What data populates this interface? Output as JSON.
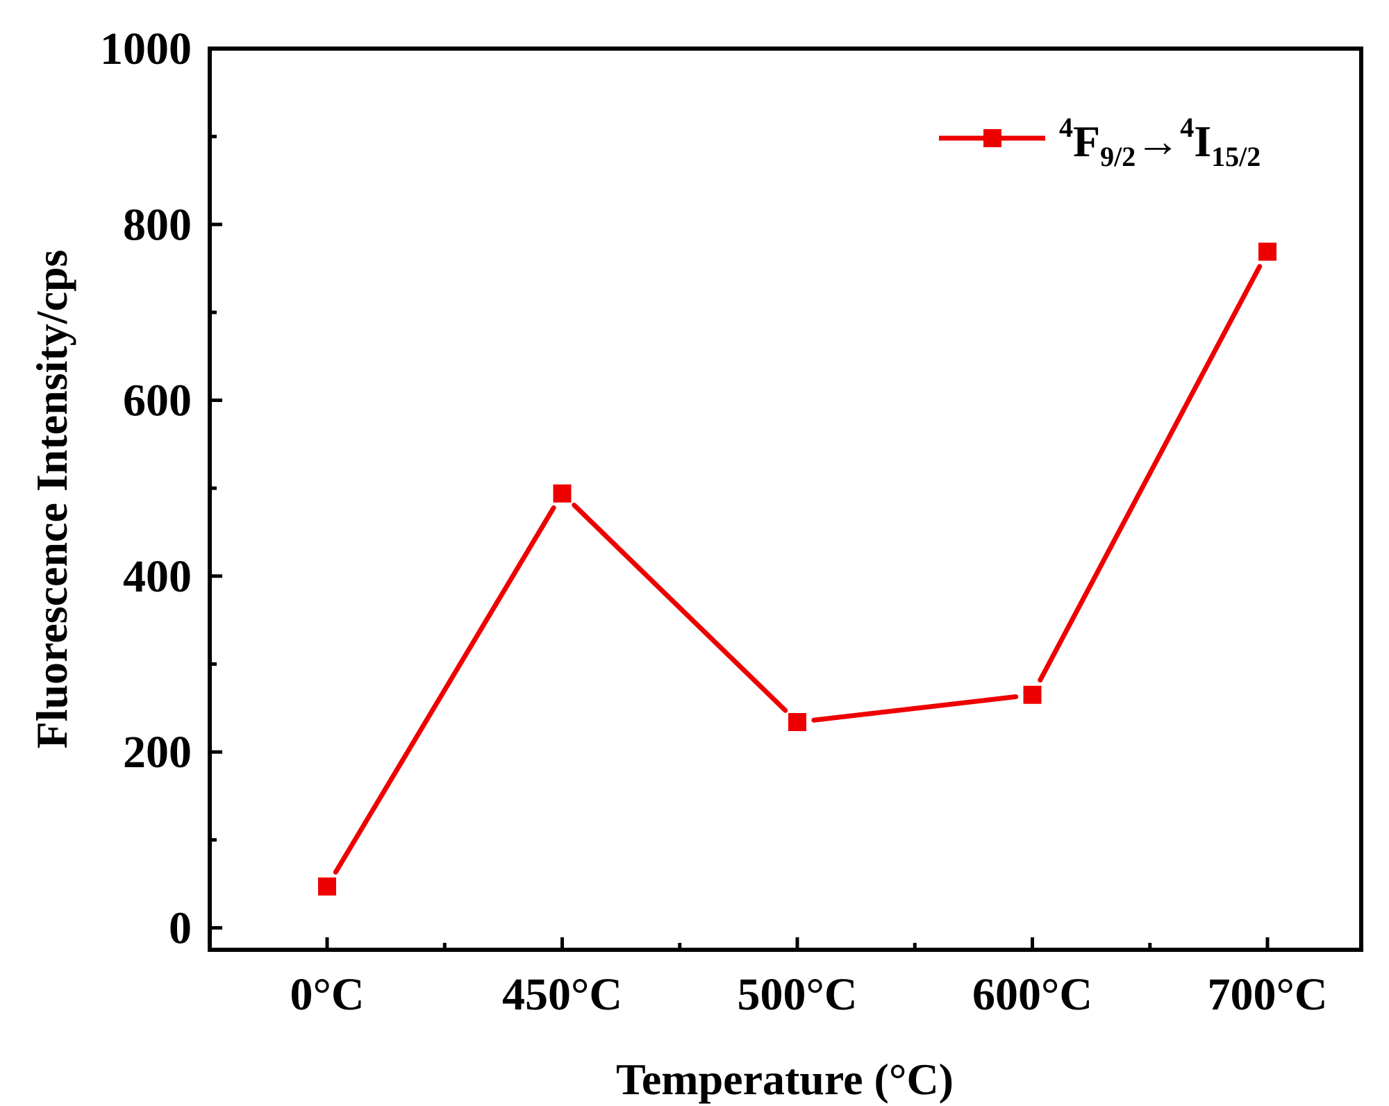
{
  "chart_data": {
    "type": "line",
    "xlabel": "Temperature (°C)",
    "ylabel": "Fluorescence Intensity/cps",
    "categories": [
      "0°C",
      "450°C",
      "500°C",
      "600°C",
      "700°C"
    ],
    "ylim": [
      -25,
      1000
    ],
    "yticks": [
      0,
      200,
      400,
      600,
      800,
      1000
    ],
    "yticks_minor": [
      100,
      300,
      500,
      700,
      900
    ],
    "legend_position": "top-right",
    "grid": false,
    "series": [
      {
        "name": "4F9/2→4I15/2",
        "legend": {
          "sup1": "4",
          "main1": "F",
          "sub1": "9/2",
          "arrow": "→",
          "sup2": "4",
          "main2": "I",
          "sub2": "15/2"
        },
        "color": "#ee0000",
        "marker": "square",
        "values": [
          47,
          494,
          234,
          265,
          769
        ]
      }
    ]
  }
}
